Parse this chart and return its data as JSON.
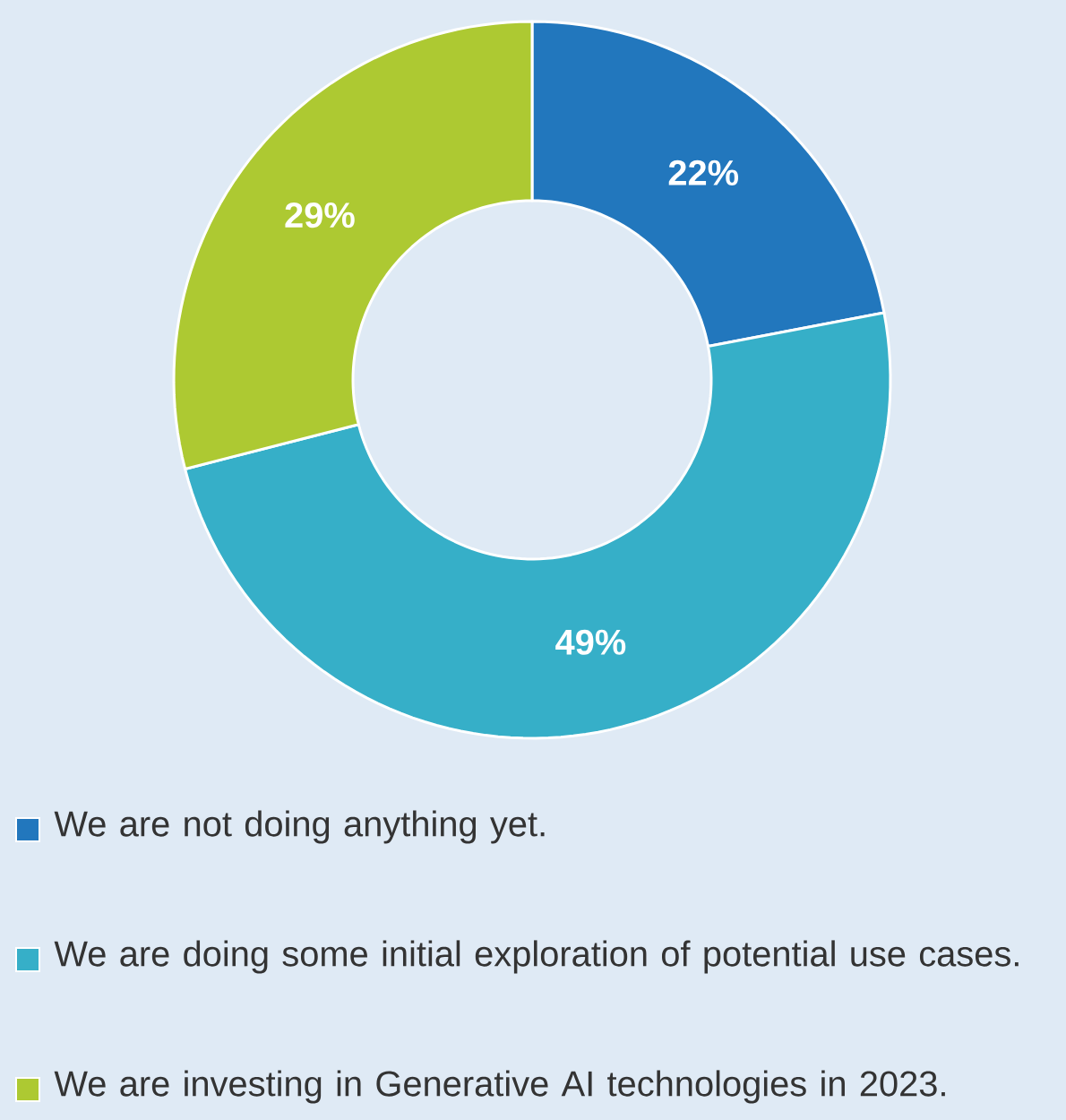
{
  "chart_data": {
    "type": "donut",
    "categories": [
      "We are not doing anything yet.",
      "We are doing some initial exploration of potential use cases.",
      "We are investing in Generative AI technologies in 2023."
    ],
    "values": [
      22,
      49,
      29
    ],
    "colors": [
      "#2277bd",
      "#36afc8",
      "#adc932"
    ],
    "value_labels": [
      "22%",
      "49%",
      "29%"
    ],
    "legend": "bottom"
  }
}
